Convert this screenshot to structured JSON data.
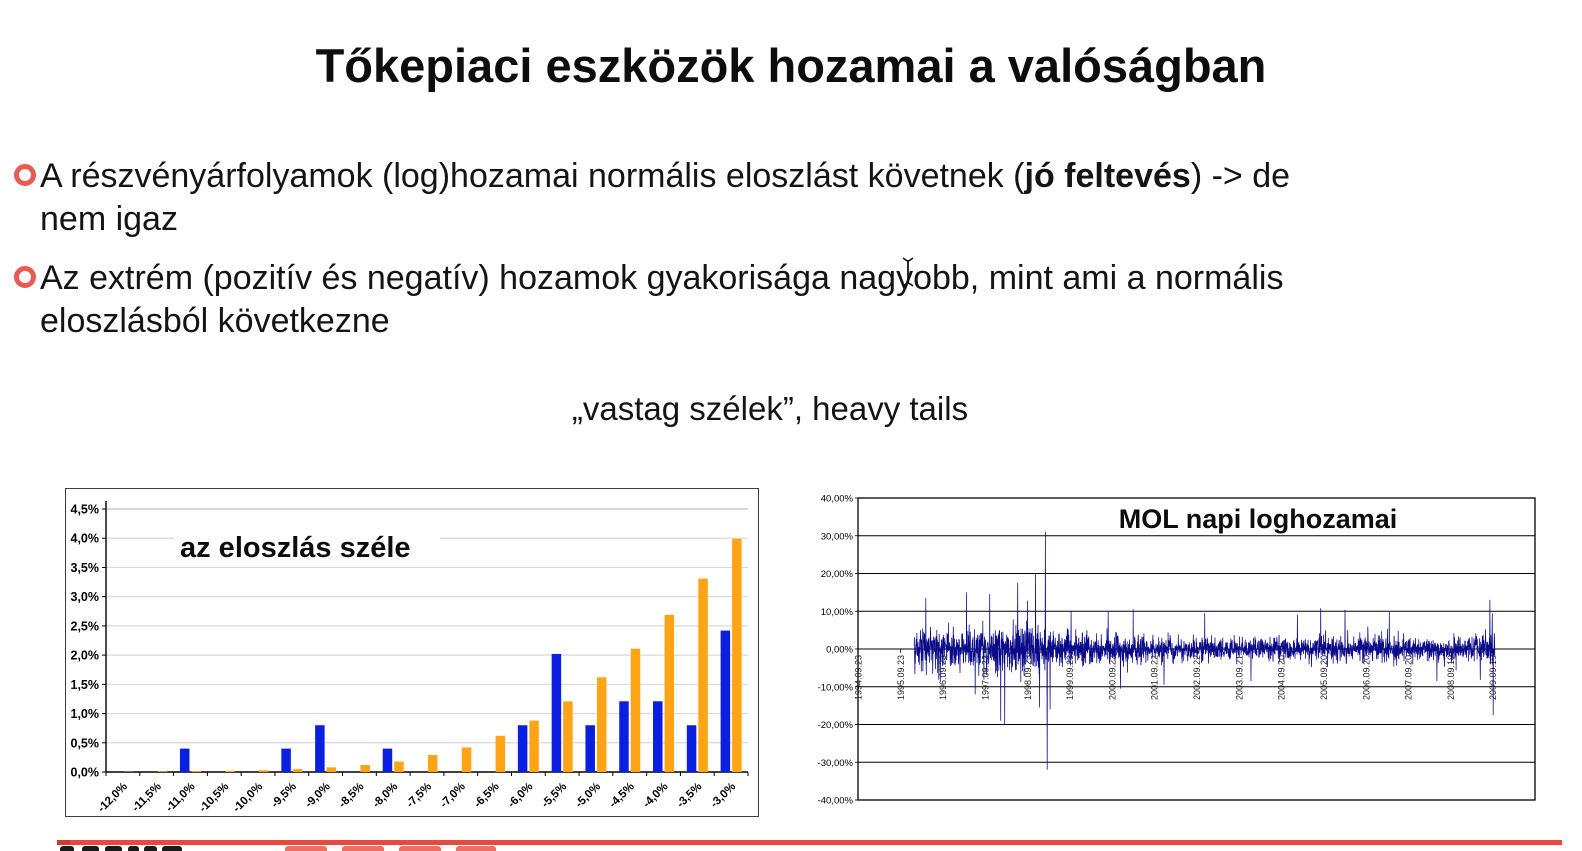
{
  "slide": {
    "title": "Tőkepiaci eszközök hozamai a valóságban",
    "bullets": [
      {
        "pre": "A részvényárfolyamok (log)hozamai normális eloszlást követnek (",
        "bold": "jó feltevés",
        "post": ") -> de\nnem igaz"
      },
      {
        "pre": "Az extrém (pozitív és negatív) hozamok gyakorisága nagyobb, mint ami a normális\neloszlásból következne",
        "bold": "",
        "post": ""
      }
    ],
    "note": "„vastag szélek”, heavy tails"
  },
  "footer": {
    "divider_color": "#e8493f"
  },
  "chart_data": [
    {
      "type": "bar",
      "title": "az eloszlás széle",
      "categories": [
        "-12,0%",
        "-11,5%",
        "-11,0%",
        "-10,5%",
        "-10,0%",
        "-9,5%",
        "-9,0%",
        "-8,5%",
        "-8,0%",
        "-7,5%",
        "-7,0%",
        "-6,5%",
        "-6,0%",
        "-5,5%",
        "-5,0%",
        "-4,5%",
        "-4,0%",
        "-3,5%",
        "-3,0%"
      ],
      "series": [
        {
          "name": "blue",
          "color": "#0b1fe0",
          "values": [
            0,
            0,
            0.4,
            0,
            0,
            0.4,
            0.8,
            0,
            0.4,
            0,
            0,
            0,
            0.8,
            2.02,
            0.8,
            1.21,
            1.21,
            0.8,
            2.42
          ]
        },
        {
          "name": "orange",
          "color": "#ffa414",
          "values": [
            0.004,
            0.01,
            0.015,
            0.02,
            0.03,
            0.05,
            0.08,
            0.12,
            0.18,
            0.29,
            0.42,
            0.62,
            0.88,
            1.21,
            1.62,
            2.11,
            2.69,
            3.31,
            3.99
          ]
        }
      ],
      "ylim": [
        0,
        4.5
      ],
      "ytick_step": 0.5,
      "ytick_labels": [
        "0,0%",
        "0,5%",
        "1,0%",
        "1,5%",
        "2,0%",
        "2,5%",
        "3,0%",
        "3,5%",
        "4,0%",
        "4,5%"
      ],
      "grid": true,
      "legend": "none"
    },
    {
      "type": "line",
      "title": "MOL napi loghozamai",
      "ylabel": "",
      "ylim": [
        -40,
        40
      ],
      "ytick_labels": [
        "40,00%",
        "30,00%",
        "20,00%",
        "10,00%",
        "0,00%",
        "-10,00%",
        "-20,00%",
        "-30,00%",
        "-40,00%"
      ],
      "x_tick_labels": [
        "1994.09.23",
        "1995.09.23",
        "1996.09.23",
        "1997.09.23",
        "1998.09.23",
        "1999.09.23",
        "2000.09.22",
        "2001.09.22",
        "2002.09.22",
        "2003.09.21",
        "2004.09.20",
        "2005.09.20",
        "2006.09.20",
        "2007.09.20",
        "2008.09.19",
        "2009.09.19"
      ],
      "line_color": "#0a0a8a",
      "grid": true,
      "legend": "none",
      "synthesis": {
        "seed": 42,
        "n_points": 2600,
        "data_start_frac": 0.083,
        "volatility_profile_pct": [
          {
            "t": 0.0,
            "sd": 2.6
          },
          {
            "t": 0.06,
            "sd": 2.3
          },
          {
            "t": 0.12,
            "sd": 3.0
          },
          {
            "t": 0.2,
            "sd": 3.3
          },
          {
            "t": 0.26,
            "sd": 2.3
          },
          {
            "t": 0.35,
            "sd": 2.0
          },
          {
            "t": 0.45,
            "sd": 1.7
          },
          {
            "t": 0.55,
            "sd": 1.5
          },
          {
            "t": 0.62,
            "sd": 1.4
          },
          {
            "t": 0.7,
            "sd": 1.7
          },
          {
            "t": 0.8,
            "sd": 1.7
          },
          {
            "t": 0.9,
            "sd": 1.5
          },
          {
            "t": 1.0,
            "sd": 2.1
          }
        ],
        "notable_spikes_pct": [
          {
            "t": 0.02,
            "v": 13.5
          },
          {
            "t": 0.045,
            "v": -8.5
          },
          {
            "t": 0.09,
            "v": 15.0
          },
          {
            "t": 0.105,
            "v": -12.0
          },
          {
            "t": 0.13,
            "v": 14.5
          },
          {
            "t": 0.149,
            "v": -19.0
          },
          {
            "t": 0.156,
            "v": -20.0
          },
          {
            "t": 0.178,
            "v": 17.5
          },
          {
            "t": 0.195,
            "v": 12.8
          },
          {
            "t": 0.209,
            "v": 20.0
          },
          {
            "t": 0.216,
            "v": -15.5
          },
          {
            "t": 0.226,
            "v": 31.0
          },
          {
            "t": 0.229,
            "v": -32.0
          },
          {
            "t": 0.234,
            "v": -16.0
          },
          {
            "t": 0.27,
            "v": 10.0
          },
          {
            "t": 0.334,
            "v": 10.0
          },
          {
            "t": 0.355,
            "v": -10.5
          },
          {
            "t": 0.377,
            "v": 10.5
          },
          {
            "t": 0.43,
            "v": -9.5
          },
          {
            "t": 0.5,
            "v": 9.5
          },
          {
            "t": 0.58,
            "v": -8.5
          },
          {
            "t": 0.66,
            "v": 9.0
          },
          {
            "t": 0.7,
            "v": 10.8
          },
          {
            "t": 0.742,
            "v": 10.4
          },
          {
            "t": 0.818,
            "v": 9.8
          },
          {
            "t": 0.9,
            "v": -8.5
          },
          {
            "t": 0.991,
            "v": 13.0
          },
          {
            "t": 0.997,
            "v": -17.5
          }
        ]
      }
    }
  ]
}
